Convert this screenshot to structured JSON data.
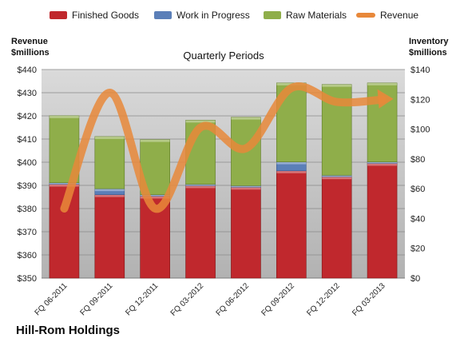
{
  "chart_data": {
    "type": "bar",
    "subtitle": "Quarterly Periods",
    "company": "Hill-Rom Holdings",
    "y_left_label": [
      "Revenue",
      "$millions"
    ],
    "y_right_label": [
      "Inventory",
      "$millions"
    ],
    "y_left_ticks": [
      "$350",
      "$360",
      "$370",
      "$380",
      "$390",
      "$400",
      "$410",
      "$420",
      "$430",
      "$440"
    ],
    "y_right_ticks": [
      "$0",
      "$20",
      "$40",
      "$60",
      "$80",
      "$100",
      "$120",
      "$140"
    ],
    "y_left_lim": [
      350,
      440
    ],
    "y_right_lim": [
      0,
      140
    ],
    "grid": true,
    "legend_position": "top",
    "categories": [
      "FQ 06-2011",
      "FQ 09-2011",
      "FQ 12-2011",
      "FQ 03-2012",
      "FQ 06-2012",
      "FQ 09-2012",
      "FQ 12-2012",
      "FQ 03-2013"
    ],
    "series": [
      {
        "name": "Finished Goods",
        "axis": "right",
        "kind": "stacked-bar",
        "color": "#c0282d",
        "values": [
          63.0,
          56.0,
          55.0,
          62.0,
          61.0,
          72.0,
          68.0,
          77.0
        ]
      },
      {
        "name": "Work in Progress",
        "axis": "right",
        "kind": "stacked-bar",
        "color": "#5b7fb8",
        "values": [
          1.0,
          4.0,
          1.0,
          1.0,
          1.0,
          6.0,
          1.0,
          1.0
        ]
      },
      {
        "name": "Raw Materials",
        "axis": "right",
        "kind": "stacked-bar",
        "color": "#8fae4a",
        "values": [
          45.0,
          35.0,
          37.0,
          43.0,
          46.0,
          53.0,
          61.0,
          53.0
        ]
      },
      {
        "name": "Revenue",
        "axis": "left",
        "kind": "line",
        "color": "#e8883a",
        "values": [
          380.0,
          430.0,
          380.0,
          415.0,
          406.0,
          432.0,
          426.0,
          427.0
        ]
      }
    ]
  },
  "colors": {
    "plot_bg_top": "#d9d9d9",
    "plot_bg_bottom": "#b4b4b4",
    "finished": "#c0282d",
    "wip": "#5b7fb8",
    "raw": "#8fae4a",
    "revenue": "#e8883a"
  }
}
